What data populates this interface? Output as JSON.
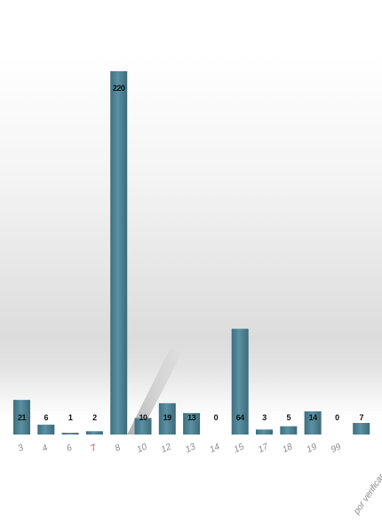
{
  "chart_data": {
    "type": "bar",
    "title": "",
    "xlabel": "",
    "ylabel": "",
    "categories": [
      "3",
      "4",
      "6",
      "7",
      "8",
      "10",
      "12",
      "13",
      "14",
      "15",
      "17",
      "18",
      "19",
      "99",
      "por verificar"
    ],
    "values": [
      21,
      6,
      1,
      2,
      220,
      10,
      19,
      13,
      0,
      64,
      3,
      5,
      14,
      0,
      7
    ],
    "ylim": [
      0,
      220
    ],
    "grid": false,
    "legend": "none",
    "colors": {
      "bar": "#4f8597",
      "bar_dark": "#3c6a79",
      "label_text": "#111111",
      "tick_text": "#8a8a8a",
      "tick_text_highlight": "#b94a4a"
    },
    "highlighted_categories": [
      "7"
    ]
  }
}
